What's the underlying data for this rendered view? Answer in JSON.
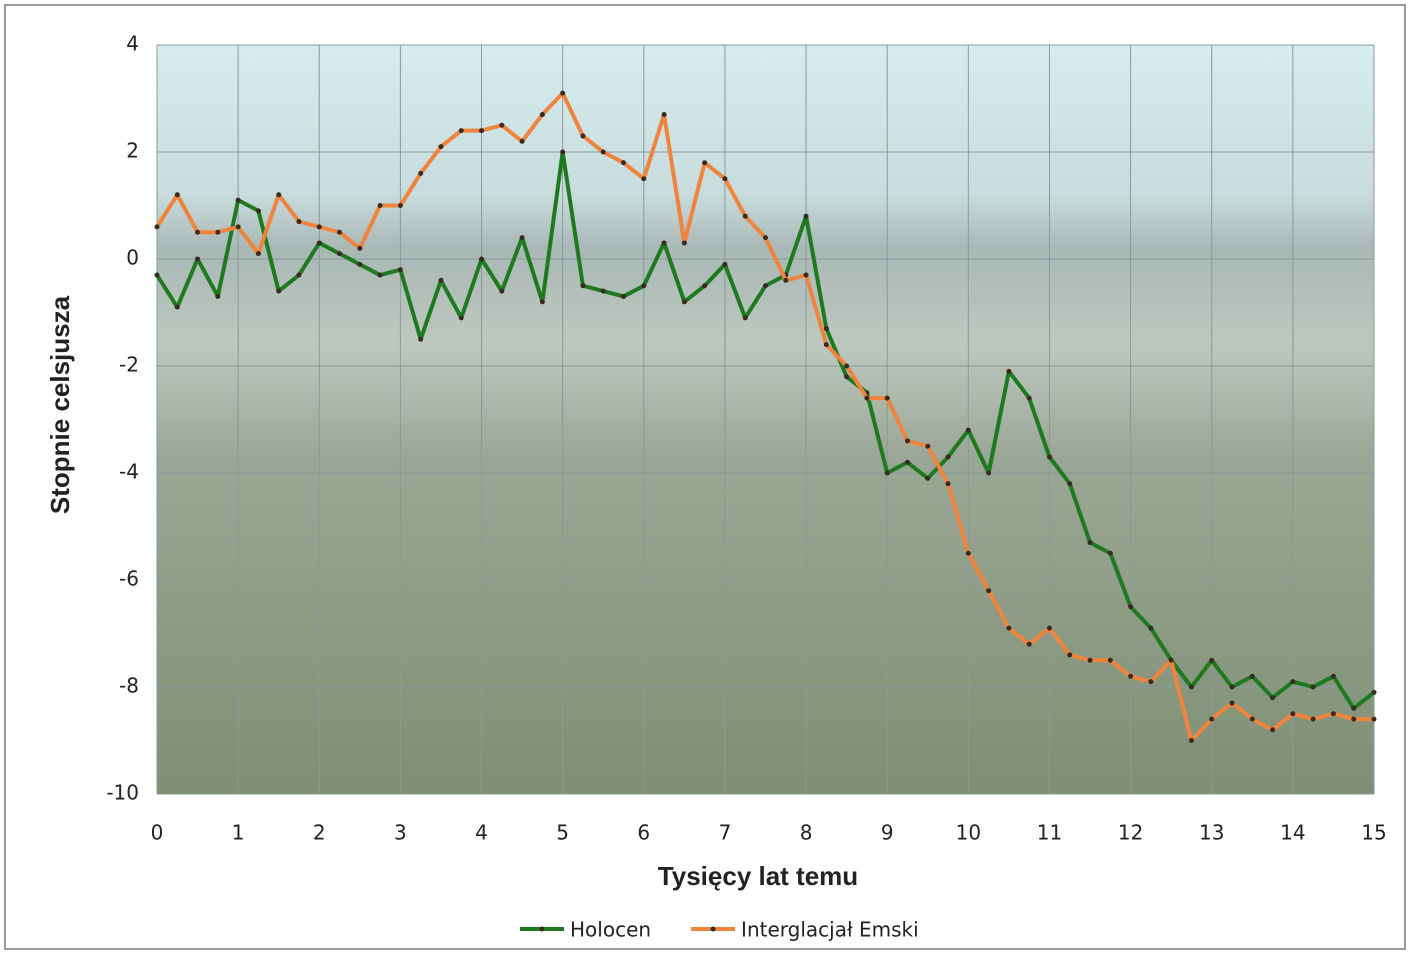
{
  "chart_data": {
    "type": "line",
    "x_label": "Tysięcy lat temu",
    "y_label": "Stopnie celsjusza",
    "x": [
      0,
      0.25,
      0.5,
      0.75,
      1,
      1.25,
      1.5,
      1.75,
      2,
      2.25,
      2.5,
      2.75,
      3,
      3.25,
      3.5,
      3.75,
      4,
      4.25,
      4.5,
      4.75,
      5,
      5.25,
      5.5,
      5.75,
      6,
      6.25,
      6.5,
      6.75,
      7,
      7.25,
      7.5,
      7.75,
      8,
      8.25,
      8.5,
      8.75,
      9,
      9.25,
      9.5,
      9.75,
      10,
      10.25,
      10.5,
      10.75,
      11,
      11.25,
      11.5,
      11.75,
      12,
      12.25,
      12.5,
      12.75,
      13,
      13.25,
      13.5,
      13.75,
      14,
      14.25,
      14.5,
      14.75,
      15
    ],
    "series": [
      {
        "name": "Holocen",
        "color": "#1f7a1f",
        "values": [
          -0.3,
          -0.9,
          0.0,
          -0.7,
          1.1,
          0.9,
          -0.6,
          -0.3,
          0.3,
          0.1,
          -0.1,
          -0.3,
          -0.2,
          -1.5,
          -0.4,
          -1.1,
          0.0,
          -0.6,
          0.4,
          -0.8,
          2.0,
          -0.5,
          -0.6,
          -0.7,
          -0.5,
          0.3,
          -0.8,
          -0.5,
          -0.1,
          -1.1,
          -0.5,
          -0.3,
          0.8,
          -1.3,
          -2.2,
          -2.5,
          -4.0,
          -3.8,
          -4.1,
          -3.7,
          -3.2,
          -4.0,
          -2.1,
          -2.6,
          -3.7,
          -4.2,
          -5.3,
          -5.5,
          -6.5,
          -6.9,
          -7.5,
          -8.0,
          -7.5,
          -8.0,
          -7.8,
          -8.2,
          -7.9,
          -8.0,
          -7.8,
          -8.4,
          -8.1
        ]
      },
      {
        "name": "Interglacjał Emski",
        "color": "#f0843c",
        "values": [
          0.6,
          1.2,
          0.5,
          0.5,
          0.6,
          0.1,
          1.2,
          0.7,
          0.6,
          0.5,
          0.2,
          1.0,
          1.0,
          1.6,
          2.1,
          2.4,
          2.4,
          2.5,
          2.2,
          2.7,
          3.1,
          2.3,
          2.0,
          1.8,
          1.5,
          2.7,
          0.3,
          1.8,
          1.5,
          0.8,
          0.4,
          -0.4,
          -0.3,
          -1.6,
          -2.0,
          -2.6,
          -2.6,
          -3.4,
          -3.5,
          -4.2,
          -5.5,
          -6.2,
          -6.9,
          -7.2,
          -6.9,
          -7.4,
          -7.5,
          -7.5,
          -7.8,
          -7.9,
          -7.5,
          -9.0,
          -8.6,
          -8.3,
          -8.6,
          -8.8,
          -8.5,
          -8.6,
          -8.5,
          -8.6,
          -8.6
        ]
      }
    ],
    "xlim": [
      0,
      15
    ],
    "xticks": [
      0,
      1,
      2,
      3,
      4,
      5,
      6,
      7,
      8,
      9,
      10,
      11,
      12,
      13,
      14,
      15
    ],
    "ylim": [
      -10,
      4
    ],
    "yticks": [
      -10,
      -8,
      -6,
      -4,
      -2,
      0,
      2,
      4
    ],
    "grid": true
  }
}
